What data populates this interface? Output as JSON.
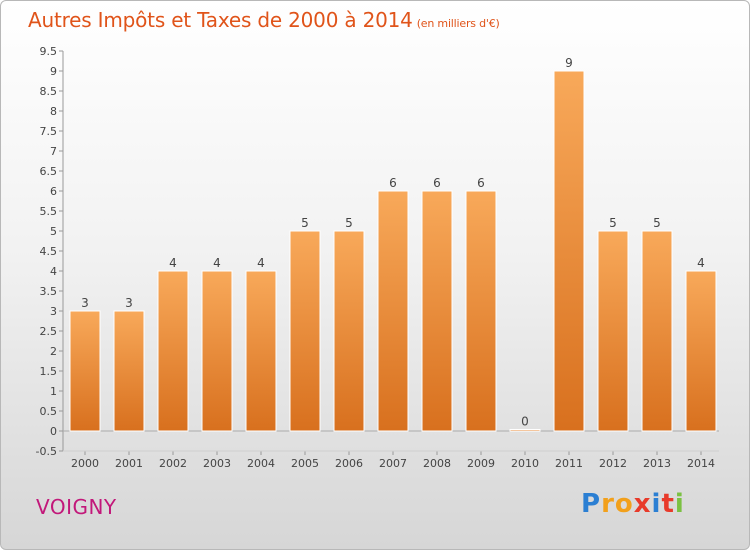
{
  "header": {
    "title": "Autres Impôts et Taxes de 2000 à 2014",
    "unit": "(en milliers d'€)"
  },
  "footer": {
    "commune": "VOIGNY",
    "logo": [
      "P",
      "r",
      "o",
      "x",
      "i",
      "t",
      "i"
    ]
  },
  "colors": {
    "bar_light": "#f8a95a",
    "bar_dark": "#d8701e",
    "title": "#e0541a",
    "commune": "#c2187a",
    "logo": [
      "#2b7fd3",
      "#f2a01b",
      "#f2a01b",
      "#e83a2a",
      "#2b7fd3",
      "#e83a2a",
      "#7bc142"
    ]
  },
  "chart_data": {
    "type": "bar",
    "title": "Autres Impôts et Taxes de 2000 à 2014",
    "subtitle": "(en milliers d'€)",
    "categories": [
      "2000",
      "2001",
      "2002",
      "2003",
      "2004",
      "2005",
      "2006",
      "2007",
      "2008",
      "2009",
      "2010",
      "2011",
      "2012",
      "2013",
      "2014"
    ],
    "values": [
      3,
      3,
      4,
      4,
      4,
      5,
      5,
      6,
      6,
      6,
      0,
      9,
      5,
      5,
      4
    ],
    "data_labels": [
      "3",
      "3",
      "4",
      "4",
      "4",
      "5",
      "5",
      "6",
      "6",
      "6",
      "0",
      "9",
      "5",
      "5",
      "4"
    ],
    "yticks": [
      "-0.5",
      "0",
      "0.5",
      "1",
      "1.5",
      "2",
      "2.5",
      "3",
      "3.5",
      "4",
      "4.5",
      "5",
      "5.5",
      "6",
      "6.5",
      "7",
      "7.5",
      "8",
      "8.5",
      "9",
      "9.5"
    ],
    "ylim": [
      -0.5,
      9.5
    ],
    "grid": false,
    "legend": "none"
  }
}
